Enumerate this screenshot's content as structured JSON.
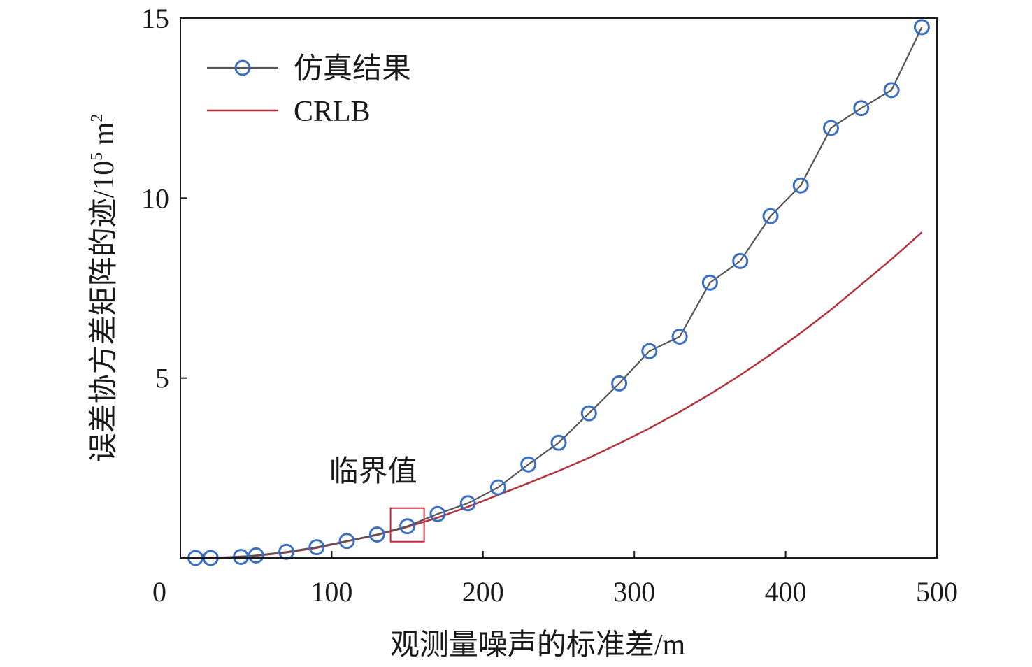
{
  "chart_data": {
    "type": "line",
    "xlabel": "观测量噪声的标准差/m",
    "ylabel": "误差协方差矩阵的迹/10",
    "ylabel_exp": "5",
    "ylabel_unit": " m",
    "ylabel_unit_exp": "2",
    "xlim": [
      0,
      500
    ],
    "ylim": [
      0,
      15
    ],
    "xticks": [
      0,
      100,
      200,
      300,
      400,
      500
    ],
    "yticks": [
      5,
      10,
      15
    ],
    "grid": false,
    "legend": "top-left",
    "annotation": {
      "text": "临界值",
      "x": 150,
      "y": 0.88
    },
    "series": [
      {
        "name": "仿真结果",
        "color": "#555555",
        "marker_color": "#3a6fc4",
        "marker": "circle",
        "x": [
          10,
          20,
          40,
          50,
          70,
          90,
          110,
          130,
          150,
          170,
          190,
          210,
          230,
          250,
          270,
          290,
          310,
          330,
          350,
          370,
          390,
          410,
          430,
          450,
          470,
          490
        ],
        "y": [
          0.0,
          0.0,
          0.03,
          0.07,
          0.17,
          0.3,
          0.47,
          0.65,
          0.88,
          1.22,
          1.52,
          1.96,
          2.6,
          3.2,
          4.02,
          4.85,
          5.75,
          6.15,
          7.65,
          8.25,
          9.5,
          10.35,
          11.95,
          12.5,
          13.0,
          14.75
        ]
      },
      {
        "name": "CRLB",
        "color": "#b5323c",
        "marker": "none",
        "x": [
          10,
          30,
          50,
          70,
          90,
          110,
          130,
          150,
          170,
          190,
          210,
          230,
          250,
          270,
          290,
          310,
          330,
          350,
          370,
          390,
          410,
          430,
          450,
          470,
          490
        ],
        "y": [
          0.0,
          0.02,
          0.06,
          0.15,
          0.28,
          0.46,
          0.64,
          0.86,
          1.12,
          1.42,
          1.75,
          2.08,
          2.42,
          2.78,
          3.18,
          3.6,
          4.06,
          4.55,
          5.08,
          5.65,
          6.25,
          6.9,
          7.6,
          8.3,
          9.05
        ]
      }
    ]
  }
}
